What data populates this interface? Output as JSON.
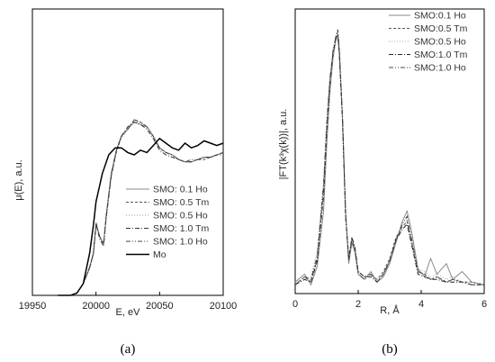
{
  "chart_data": [
    {
      "panel": "(a)",
      "type": "line",
      "xlabel": "E, eV",
      "ylabel": "μ(E), a.u.",
      "xlim": [
        19950,
        20100
      ],
      "xticks": [
        19950,
        20000,
        20050,
        20100
      ],
      "yticks": [],
      "legend_position": "lower-right",
      "series": [
        {
          "name": "SMO: 0.1 Ho",
          "style": "solid",
          "color": "#888888",
          "x": [
            19970,
            19980,
            19985,
            19990,
            19995,
            19998,
            20000,
            20003,
            20006,
            20008,
            20012,
            20016,
            20020,
            20025,
            20030,
            20035,
            20040,
            20045,
            20050,
            20055,
            20060,
            20065,
            20070,
            20075,
            20080,
            20085,
            20090,
            20095,
            20100
          ],
          "y": [
            0.0,
            0.0,
            0.01,
            0.05,
            0.12,
            0.18,
            0.31,
            0.25,
            0.22,
            0.34,
            0.52,
            0.62,
            0.68,
            0.71,
            0.74,
            0.73,
            0.72,
            0.68,
            0.63,
            0.61,
            0.6,
            0.58,
            0.57,
            0.57,
            0.58,
            0.59,
            0.59,
            0.6,
            0.61
          ]
        },
        {
          "name": "SMO: 0.5 Tm",
          "style": "dashed",
          "color": "#555555",
          "x": [
            19970,
            19980,
            19985,
            19990,
            19995,
            19998,
            20000,
            20003,
            20006,
            20008,
            20012,
            20016,
            20020,
            20025,
            20030,
            20035,
            20040,
            20045,
            20050,
            20055,
            20060,
            20065,
            20070,
            20075,
            20080,
            20085,
            20090,
            20095,
            20100
          ],
          "y": [
            0.0,
            0.0,
            0.01,
            0.05,
            0.12,
            0.18,
            0.3,
            0.25,
            0.22,
            0.34,
            0.51,
            0.61,
            0.68,
            0.71,
            0.75,
            0.74,
            0.72,
            0.68,
            0.63,
            0.61,
            0.6,
            0.58,
            0.57,
            0.57,
            0.58,
            0.58,
            0.59,
            0.6,
            0.61
          ]
        },
        {
          "name": "SMO: 0.5 Ho",
          "style": "dotted",
          "color": "#999999",
          "x": [
            19970,
            19980,
            19985,
            19990,
            19995,
            19998,
            20000,
            20003,
            20006,
            20008,
            20012,
            20016,
            20020,
            20025,
            20030,
            20035,
            20040,
            20045,
            20050,
            20055,
            20060,
            20065,
            20070,
            20075,
            20080,
            20085,
            20090,
            20095,
            20100
          ],
          "y": [
            0.0,
            0.0,
            0.01,
            0.05,
            0.11,
            0.17,
            0.29,
            0.25,
            0.22,
            0.33,
            0.51,
            0.61,
            0.67,
            0.71,
            0.74,
            0.74,
            0.72,
            0.68,
            0.63,
            0.61,
            0.6,
            0.58,
            0.57,
            0.57,
            0.58,
            0.59,
            0.59,
            0.6,
            0.61
          ]
        },
        {
          "name": "SMO: 1.0 Tm",
          "style": "dashdot",
          "color": "#333333",
          "x": [
            19970,
            19980,
            19985,
            19990,
            19995,
            19998,
            20000,
            20003,
            20006,
            20008,
            20012,
            20016,
            20020,
            20025,
            20030,
            20035,
            20040,
            20045,
            20050,
            20055,
            20060,
            20065,
            20070,
            20075,
            20080,
            20085,
            20090,
            20095,
            20100
          ],
          "y": [
            0.0,
            0.0,
            0.01,
            0.05,
            0.12,
            0.18,
            0.3,
            0.24,
            0.21,
            0.33,
            0.51,
            0.62,
            0.68,
            0.72,
            0.74,
            0.73,
            0.71,
            0.67,
            0.62,
            0.6,
            0.59,
            0.58,
            0.57,
            0.57,
            0.58,
            0.59,
            0.59,
            0.6,
            0.6
          ]
        },
        {
          "name": "SMO: 1.0 Ho",
          "style": "dashdotdot",
          "color": "#444444",
          "x": [
            19970,
            19980,
            19985,
            19990,
            19995,
            19998,
            20000,
            20003,
            20006,
            20008,
            20012,
            20016,
            20020,
            20025,
            20030,
            20035,
            20040,
            20045,
            20050,
            20055,
            20060,
            20065,
            20070,
            20075,
            20080,
            20085,
            20090,
            20095,
            20100
          ],
          "y": [
            0.0,
            0.0,
            0.01,
            0.05,
            0.12,
            0.18,
            0.31,
            0.25,
            0.22,
            0.34,
            0.52,
            0.62,
            0.68,
            0.71,
            0.75,
            0.74,
            0.72,
            0.68,
            0.63,
            0.61,
            0.6,
            0.58,
            0.57,
            0.58,
            0.58,
            0.59,
            0.59,
            0.6,
            0.61
          ]
        },
        {
          "name": "Mo",
          "style": "solid-thick",
          "color": "#000000",
          "x": [
            19970,
            19980,
            19985,
            19990,
            19995,
            19998,
            20000,
            20005,
            20010,
            20015,
            20020,
            20025,
            20030,
            20035,
            20040,
            20045,
            20050,
            20055,
            20060,
            20065,
            20070,
            20075,
            20080,
            20085,
            20090,
            20095,
            20100
          ],
          "y": [
            0.0,
            0.0,
            0.01,
            0.05,
            0.18,
            0.3,
            0.4,
            0.52,
            0.6,
            0.63,
            0.63,
            0.61,
            0.6,
            0.62,
            0.61,
            0.64,
            0.67,
            0.65,
            0.63,
            0.62,
            0.65,
            0.63,
            0.64,
            0.66,
            0.65,
            0.64,
            0.65
          ]
        }
      ]
    },
    {
      "panel": "(b)",
      "type": "line",
      "xlabel": "R, Å",
      "ylabel": "|FT(k³χ(k))|, a.u.",
      "xlim": [
        0,
        6
      ],
      "xticks": [
        0,
        2,
        4,
        6
      ],
      "yticks": [],
      "legend_position": "top-right",
      "series": [
        {
          "name": "SMO:0.1 Ho",
          "style": "solid",
          "color": "#888888",
          "x": [
            0.0,
            0.3,
            0.5,
            0.7,
            0.9,
            1.0,
            1.1,
            1.2,
            1.3,
            1.35,
            1.4,
            1.5,
            1.6,
            1.7,
            1.8,
            1.9,
            2.0,
            2.2,
            2.4,
            2.6,
            2.8,
            3.0,
            3.2,
            3.4,
            3.55,
            3.7,
            3.9,
            4.1,
            4.3,
            4.5,
            4.8,
            5.0,
            5.3,
            5.6,
            6.0
          ],
          "y": [
            0.03,
            0.06,
            0.02,
            0.09,
            0.3,
            0.55,
            0.75,
            0.88,
            0.96,
            0.97,
            0.9,
            0.65,
            0.3,
            0.1,
            0.18,
            0.14,
            0.06,
            0.04,
            0.07,
            0.03,
            0.05,
            0.1,
            0.18,
            0.26,
            0.3,
            0.22,
            0.08,
            0.05,
            0.12,
            0.06,
            0.1,
            0.04,
            0.07,
            0.03,
            0.02
          ]
        },
        {
          "name": "SMO:0.5 Tm",
          "style": "dashed",
          "color": "#555555",
          "x": [
            0.0,
            0.3,
            0.5,
            0.7,
            0.9,
            1.0,
            1.1,
            1.2,
            1.3,
            1.35,
            1.4,
            1.5,
            1.6,
            1.7,
            1.8,
            1.9,
            2.0,
            2.2,
            2.4,
            2.6,
            2.8,
            3.0,
            3.2,
            3.4,
            3.55,
            3.7,
            3.9,
            4.1,
            4.3,
            4.5,
            4.8,
            5.0,
            5.3,
            5.6,
            6.0
          ],
          "y": [
            0.02,
            0.05,
            0.03,
            0.12,
            0.38,
            0.62,
            0.8,
            0.9,
            0.97,
            0.98,
            0.91,
            0.66,
            0.28,
            0.12,
            0.2,
            0.15,
            0.07,
            0.05,
            0.06,
            0.04,
            0.07,
            0.12,
            0.2,
            0.24,
            0.26,
            0.18,
            0.07,
            0.06,
            0.04,
            0.05,
            0.03,
            0.04,
            0.03,
            0.03,
            0.02
          ]
        },
        {
          "name": "SMO:0.5 Ho",
          "style": "dotted",
          "color": "#aaaaaa",
          "x": [
            0.0,
            0.3,
            0.5,
            0.7,
            0.9,
            1.0,
            1.1,
            1.2,
            1.3,
            1.35,
            1.4,
            1.5,
            1.6,
            1.7,
            1.8,
            1.9,
            2.0,
            2.2,
            2.4,
            2.6,
            2.8,
            3.0,
            3.2,
            3.4,
            3.55,
            3.7,
            3.9,
            4.1,
            4.3,
            4.5,
            4.8,
            5.0,
            5.3,
            5.6,
            6.0
          ],
          "y": [
            0.03,
            0.04,
            0.05,
            0.15,
            0.42,
            0.64,
            0.8,
            0.89,
            0.95,
            0.96,
            0.9,
            0.66,
            0.29,
            0.11,
            0.19,
            0.15,
            0.06,
            0.05,
            0.06,
            0.04,
            0.06,
            0.11,
            0.19,
            0.24,
            0.27,
            0.2,
            0.08,
            0.07,
            0.05,
            0.06,
            0.04,
            0.05,
            0.03,
            0.03,
            0.02
          ]
        },
        {
          "name": "SMO:1.0 Tm",
          "style": "dashdot",
          "color": "#222222",
          "x": [
            0.0,
            0.3,
            0.5,
            0.7,
            0.9,
            1.0,
            1.1,
            1.2,
            1.3,
            1.35,
            1.4,
            1.5,
            1.6,
            1.7,
            1.8,
            1.9,
            2.0,
            2.2,
            2.4,
            2.6,
            2.8,
            3.0,
            3.2,
            3.4,
            3.55,
            3.7,
            3.9,
            4.1,
            4.3,
            4.5,
            4.8,
            5.0,
            5.3,
            5.6,
            6.0
          ],
          "y": [
            0.02,
            0.04,
            0.03,
            0.11,
            0.36,
            0.6,
            0.78,
            0.9,
            0.96,
            0.97,
            0.9,
            0.65,
            0.28,
            0.12,
            0.2,
            0.16,
            0.07,
            0.05,
            0.05,
            0.03,
            0.06,
            0.11,
            0.19,
            0.23,
            0.25,
            0.17,
            0.06,
            0.05,
            0.04,
            0.04,
            0.03,
            0.03,
            0.03,
            0.02,
            0.02
          ]
        },
        {
          "name": "SMO:1.0 Ho",
          "style": "dashdotdot",
          "color": "#444444",
          "x": [
            0.0,
            0.3,
            0.5,
            0.7,
            0.9,
            1.0,
            1.1,
            1.2,
            1.3,
            1.35,
            1.4,
            1.5,
            1.6,
            1.7,
            1.8,
            1.9,
            2.0,
            2.2,
            2.4,
            2.6,
            2.8,
            3.0,
            3.2,
            3.4,
            3.55,
            3.7,
            3.9,
            4.1,
            4.3,
            4.5,
            4.8,
            5.0,
            5.3,
            5.6,
            6.0
          ],
          "y": [
            0.02,
            0.05,
            0.04,
            0.13,
            0.4,
            0.63,
            0.8,
            0.91,
            0.97,
            0.99,
            0.92,
            0.67,
            0.29,
            0.11,
            0.19,
            0.15,
            0.06,
            0.04,
            0.06,
            0.03,
            0.06,
            0.11,
            0.19,
            0.25,
            0.28,
            0.19,
            0.07,
            0.06,
            0.04,
            0.05,
            0.03,
            0.04,
            0.03,
            0.02,
            0.02
          ]
        }
      ]
    }
  ]
}
